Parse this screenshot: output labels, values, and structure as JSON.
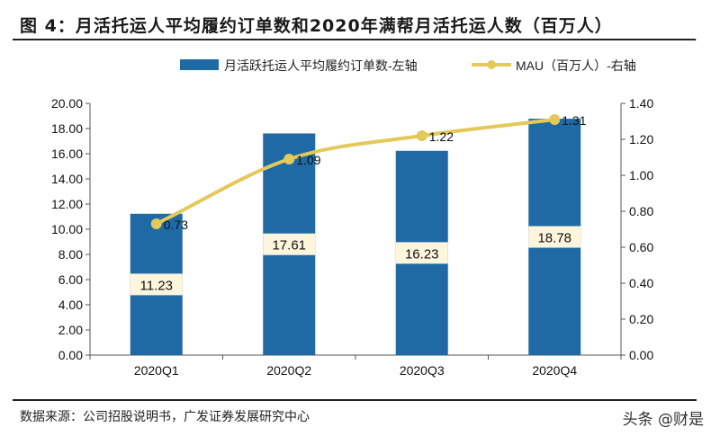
{
  "title": "图 4：月活托运人平均履约订单数和2020年满帮月活托运人数（百万人）",
  "source": "数据来源：公司招股说明书，广发证券发展研究中心",
  "watermark": "头条 @财是",
  "chart_data": {
    "type": "bar+line",
    "categories": [
      "2020Q1",
      "2020Q2",
      "2020Q3",
      "2020Q4"
    ],
    "series": [
      {
        "name": "月活跃托运人平均履约订单数-左轴",
        "type": "bar",
        "axis": "left",
        "values": [
          11.23,
          17.61,
          16.23,
          18.78
        ],
        "color": "#1f6aa5"
      },
      {
        "name": "MAU（百万人）-右轴",
        "type": "line",
        "axis": "right",
        "values": [
          0.73,
          1.09,
          1.22,
          1.31
        ],
        "color": "#e3c85a"
      }
    ],
    "left_axis": {
      "range": [
        0,
        20
      ],
      "ticks": [
        "0.00",
        "2.00",
        "4.00",
        "6.00",
        "8.00",
        "10.00",
        "12.00",
        "14.00",
        "16.00",
        "18.00",
        "20.00"
      ]
    },
    "right_axis": {
      "range": [
        0,
        1.4
      ],
      "ticks": [
        "0.00",
        "0.20",
        "0.40",
        "0.60",
        "0.80",
        "1.00",
        "1.20",
        "1.40"
      ]
    },
    "bar_labels": [
      "11.23",
      "17.61",
      "16.23",
      "18.78"
    ],
    "line_labels": [
      "0.73",
      "1.09",
      "1.22",
      "1.31"
    ],
    "legend_position": "top-right",
    "grid": false
  }
}
